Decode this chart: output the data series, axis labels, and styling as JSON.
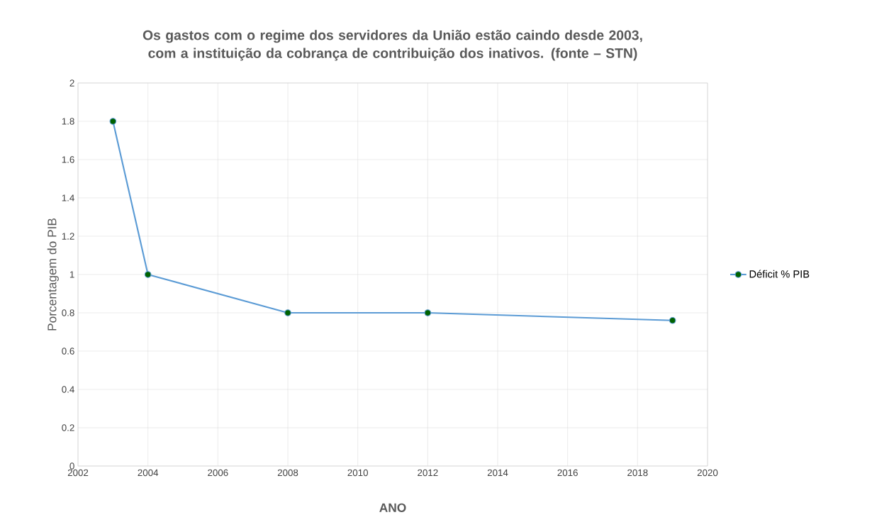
{
  "chart_data": {
    "type": "line",
    "title": "Os gastos com o regime dos servidores da União estão caindo desde 2003, com a instituição da cobrança de contribuição dos inativos. (fonte – STN)",
    "xlabel": "ANO",
    "ylabel": "Porcentagem do PIB",
    "series": [
      {
        "name": "Déficit % PIB",
        "color": "#5b9bd5",
        "x": [
          2003,
          2004,
          2008,
          2012,
          2019
        ],
        "values": [
          1.8,
          1.0,
          0.8,
          0.8,
          0.76
        ]
      }
    ],
    "xlim": [
      2002,
      2020
    ],
    "xticks": [
      2002,
      2004,
      2006,
      2008,
      2010,
      2012,
      2014,
      2016,
      2018,
      2020
    ],
    "ylim": [
      0,
      2
    ],
    "yticks": [
      0,
      0.2,
      0.4,
      0.6,
      0.8,
      1,
      1.2,
      1.4,
      1.6,
      1.8,
      2
    ],
    "grid": true,
    "legend": "right",
    "marker": "circle",
    "line_style": "solid"
  }
}
